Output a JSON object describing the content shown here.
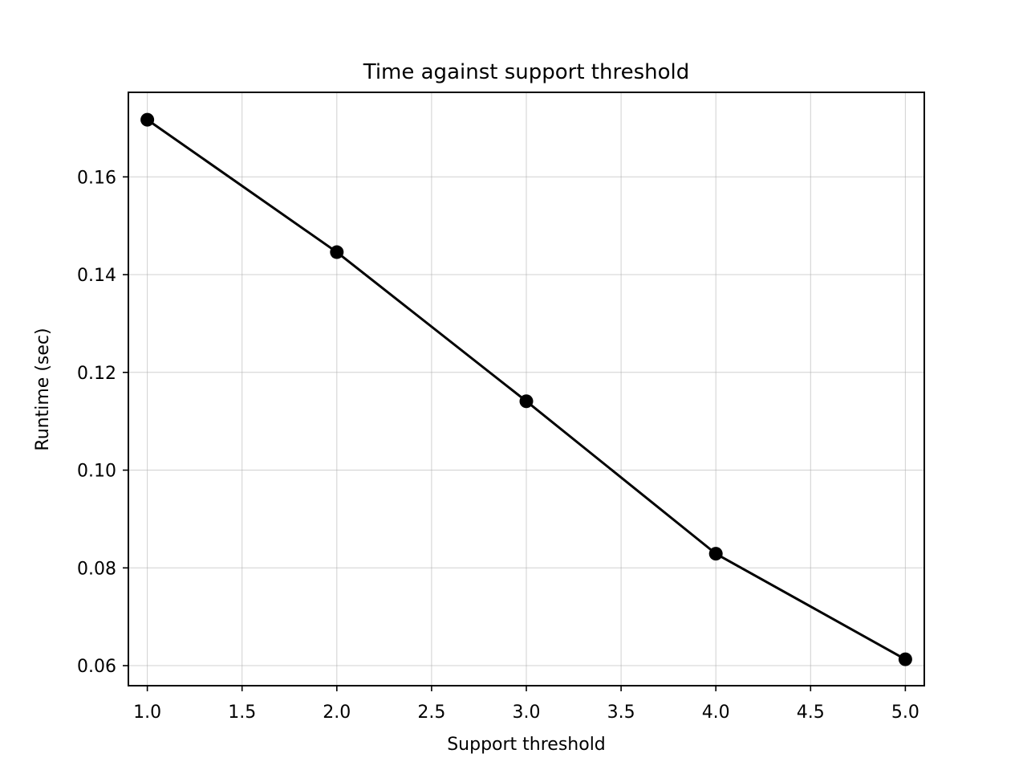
{
  "chart_data": {
    "type": "line",
    "title": "Time against support threshold",
    "xlabel": "Support threshold",
    "ylabel": "Runtime (sec)",
    "xlim": [
      0.9,
      5.1
    ],
    "ylim": [
      0.0559,
      0.1773
    ],
    "xticks": [
      1.0,
      1.5,
      2.0,
      2.5,
      3.0,
      3.5,
      4.0,
      4.5,
      5.0
    ],
    "xtick_labels": [
      "1.0",
      "1.5",
      "2.0",
      "2.5",
      "3.0",
      "3.5",
      "4.0",
      "4.5",
      "5.0"
    ],
    "yticks": [
      0.06,
      0.08,
      0.1,
      0.12,
      0.14,
      0.16
    ],
    "ytick_labels": [
      "0.06",
      "0.08",
      "0.10",
      "0.12",
      "0.14",
      "0.16"
    ],
    "grid": true,
    "legend": false,
    "series": [
      {
        "x": [
          1,
          2,
          3,
          4,
          5
        ],
        "y": [
          0.1717,
          0.1446,
          0.1141,
          0.0829,
          0.0613
        ],
        "color": "#000000",
        "marker": "circle"
      }
    ]
  }
}
